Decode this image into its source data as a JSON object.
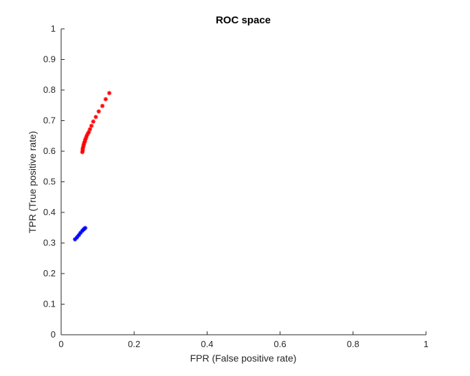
{
  "chart_data": {
    "type": "scatter",
    "title": "ROC space",
    "xlabel": "FPR (False positive rate)",
    "ylabel": "TPR (True positive rate)",
    "xlim": [
      0,
      1
    ],
    "ylim": [
      0,
      1
    ],
    "xticks": [
      0,
      0.2,
      0.4,
      0.6,
      0.8,
      1
    ],
    "xtick_labels": [
      "0",
      "0.2",
      "0.4",
      "0.6",
      "0.8",
      "1"
    ],
    "yticks": [
      0,
      0.1,
      0.2,
      0.3,
      0.4,
      0.5,
      0.6,
      0.7,
      0.8,
      0.9,
      1
    ],
    "ytick_labels": [
      "0",
      "0.1",
      "0.2",
      "0.3",
      "0.4",
      "0.5",
      "0.6",
      "0.7",
      "0.8",
      "0.9",
      "1"
    ],
    "grid": false,
    "marker": "asterisk",
    "series": [
      {
        "color": "#ff0000",
        "points": [
          [
            0.058,
            0.597
          ],
          [
            0.059,
            0.602
          ],
          [
            0.059,
            0.607
          ],
          [
            0.06,
            0.612
          ],
          [
            0.061,
            0.617
          ],
          [
            0.062,
            0.622
          ],
          [
            0.063,
            0.627
          ],
          [
            0.065,
            0.632
          ],
          [
            0.066,
            0.638
          ],
          [
            0.068,
            0.643
          ],
          [
            0.07,
            0.65
          ],
          [
            0.073,
            0.657
          ],
          [
            0.076,
            0.663
          ],
          [
            0.079,
            0.672
          ],
          [
            0.083,
            0.683
          ],
          [
            0.088,
            0.697
          ],
          [
            0.095,
            0.712
          ],
          [
            0.103,
            0.73
          ],
          [
            0.113,
            0.748
          ],
          [
            0.122,
            0.77
          ],
          [
            0.132,
            0.79
          ]
        ]
      },
      {
        "color": "#0000ff",
        "points": [
          [
            0.038,
            0.312
          ],
          [
            0.043,
            0.318
          ],
          [
            0.048,
            0.325
          ],
          [
            0.053,
            0.333
          ],
          [
            0.058,
            0.34
          ],
          [
            0.062,
            0.345
          ],
          [
            0.066,
            0.349
          ]
        ]
      }
    ]
  }
}
